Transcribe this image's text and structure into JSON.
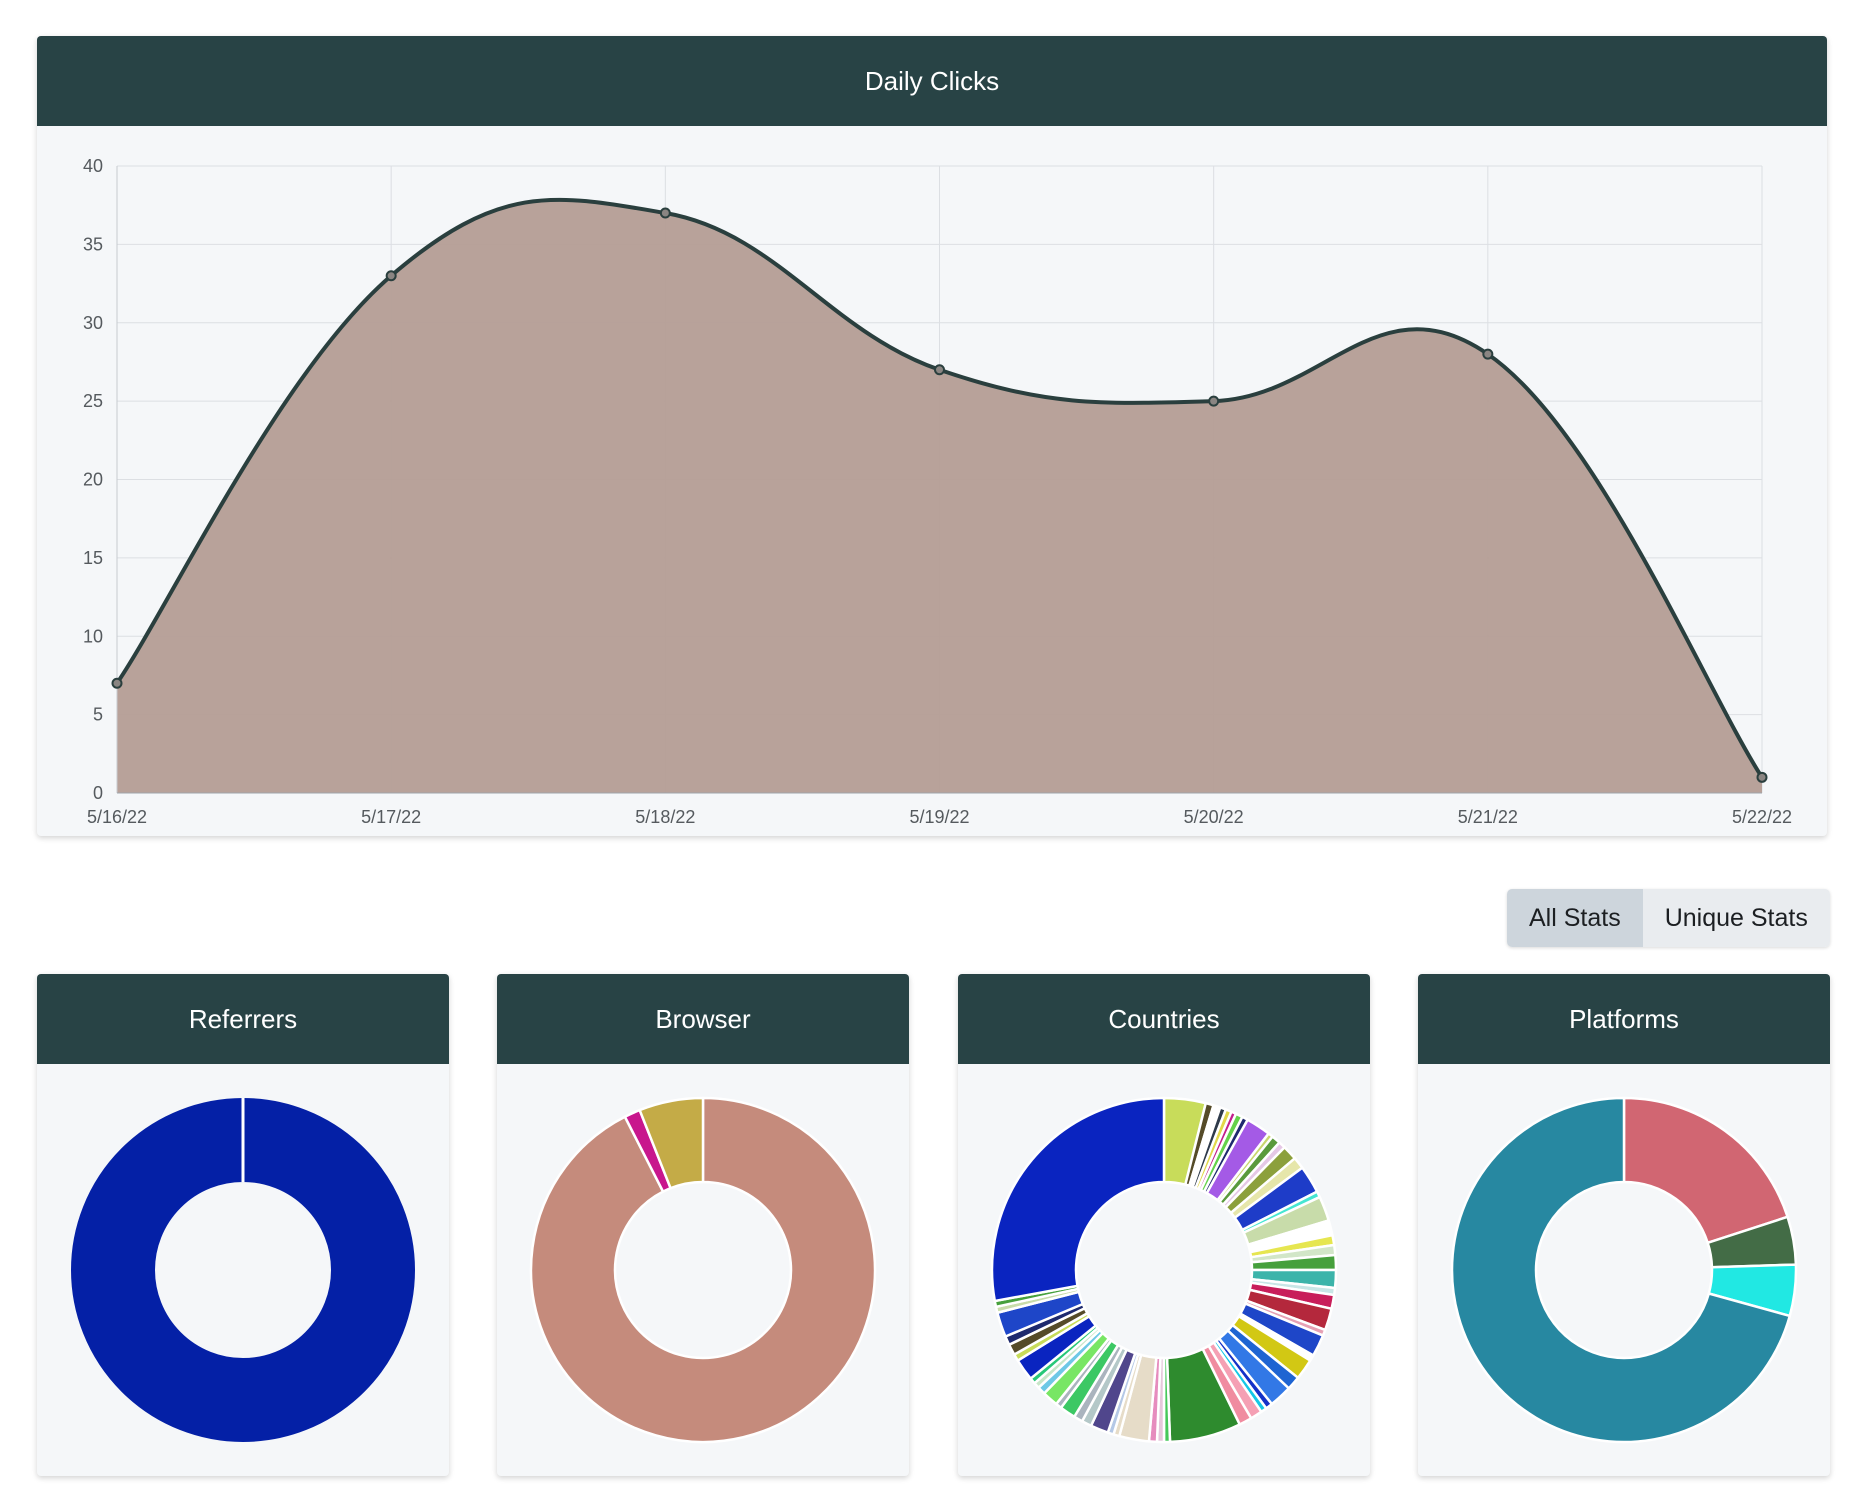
{
  "stats_toggle": {
    "all_label": "All Stats",
    "unique_label": "Unique Stats",
    "active": "all"
  },
  "chart_data": [
    {
      "type": "area",
      "title": "Daily Clicks",
      "x": [
        "5/16/22",
        "5/17/22",
        "5/18/22",
        "5/19/22",
        "5/20/22",
        "5/21/22",
        "5/22/22"
      ],
      "values": [
        7,
        33,
        37,
        27,
        25,
        28,
        1
      ],
      "ylim": [
        0,
        40
      ],
      "yticks": [
        0,
        5,
        10,
        15,
        20,
        25,
        30,
        35,
        40
      ],
      "grid": true,
      "fill_color": "#b49d95",
      "line_color": "#2a3f3e"
    },
    {
      "type": "pie",
      "donut": true,
      "title": "Referrers",
      "values": [
        100
      ],
      "colors": [
        "#0420a6"
      ]
    },
    {
      "type": "pie",
      "donut": true,
      "title": "Browser",
      "values": [
        92.5,
        1.5,
        6.0
      ],
      "colors": [
        "#c58b7c",
        "#c8168d",
        "#c4ab47"
      ]
    },
    {
      "type": "pie",
      "donut": true,
      "title": "Countries",
      "values": [
        4.2,
        0.8,
        0.7,
        0.6,
        0.6,
        0.5,
        0.7,
        0.6,
        2.5,
        0.5,
        0.9,
        0.7,
        1.5,
        1.2,
        2.8,
        0.6,
        2.5,
        1.5,
        1.0,
        1.0,
        1.5,
        1.8,
        0.7,
        1.4,
        2.2,
        0.6,
        2.2,
        0.6,
        2.1,
        1.4,
        2.3,
        0.7,
        0.6,
        1.2,
        1.3,
        7.2,
        0.6,
        0.7,
        0.8,
        3.0,
        0.6,
        0.6,
        1.8,
        1.0,
        0.9,
        1.6,
        0.6,
        1.6,
        0.8,
        0.6,
        0.6,
        2.2,
        0.7,
        1.1,
        0.9,
        2.5,
        0.6,
        0.6,
        30.0
      ],
      "colors": [
        "#c8dc5a",
        "#554b28",
        "#ffffff",
        "#2e3a4a",
        "#e2d84a",
        "#c21e8c",
        "#64d24a",
        "#1e2a6e",
        "#a45ae6",
        "#c9d770",
        "#5a9a3c",
        "#e6c8e6",
        "#8ca03c",
        "#e6e6aa",
        "#1e3cc8",
        "#46e6d2",
        "#c8dcaa",
        "#ffffff",
        "#e6e650",
        "#d2e6c8",
        "#46a03c",
        "#3cb4aa",
        "#c8e6e6",
        "#c81e5a",
        "#b4283c",
        "#e6a0b4",
        "#1e46c8",
        "#ffffff",
        "#d2c814",
        "#1e64d2",
        "#3278e6",
        "#1432c8",
        "#14c8e6",
        "#f5a0b4",
        "#f08ca0",
        "#2e8b2e",
        "#46c85a",
        "#e6c8dc",
        "#e68cbe",
        "#e6dcc8",
        "#e6dcc8",
        "#b4c8e6",
        "#50468c",
        "#b4c8c8",
        "#aab4be",
        "#3cc864",
        "#aab4be",
        "#78e664",
        "#6ec8e6",
        "#c8e6c8",
        "#28c878",
        "#0a24c0",
        "#c8dc5a",
        "#554b28",
        "#1e2a6e",
        "#1e46c8",
        "#c8dcaa",
        "#46a03c",
        "#0a24c0"
      ]
    },
    {
      "type": "pie",
      "donut": true,
      "title": "Platforms",
      "values": [
        20.0,
        4.5,
        4.8,
        70.7
      ],
      "colors": [
        "#d16672",
        "#436c46",
        "#21e8e3",
        "#2788a1"
      ]
    }
  ]
}
